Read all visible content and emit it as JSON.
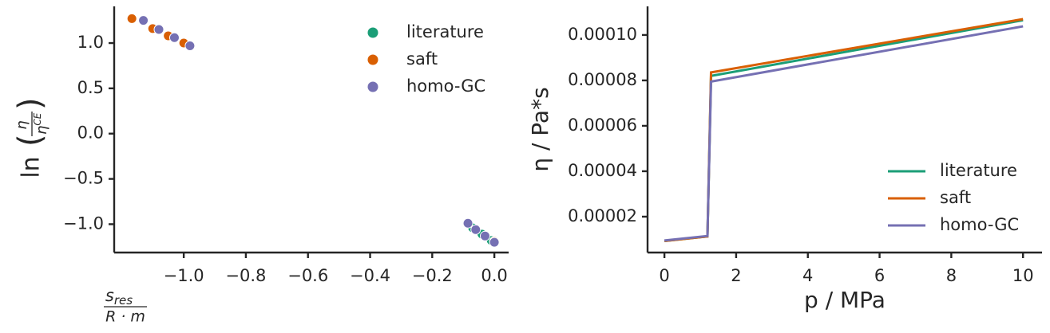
{
  "chart_data": [
    {
      "type": "scatter",
      "xlabel": {
        "num": "s",
        "num_sub": "res",
        "den": "R · m"
      },
      "ylabel": {
        "prefix": "ln",
        "num": "η",
        "den": "η",
        "den_sup": "CE"
      },
      "xlim": [
        -1.224,
        0.046
      ],
      "ylim": [
        -1.313,
        1.405
      ],
      "xticks": [
        {
          "value": -1.0,
          "label": "−1.0"
        },
        {
          "value": -0.8,
          "label": "−0.8"
        },
        {
          "value": -0.6,
          "label": "−0.6"
        },
        {
          "value": -0.4,
          "label": "−0.4"
        },
        {
          "value": -0.2,
          "label": "−0.2"
        },
        {
          "value": 0,
          "label": "0.0"
        }
      ],
      "yticks": [
        {
          "value": -1.0,
          "label": "−1.0"
        },
        {
          "value": -0.5,
          "label": "−0.5"
        },
        {
          "value": 0,
          "label": "0.0"
        },
        0.5,
        {
          "value": 1.0,
          "label": "1.0"
        }
      ],
      "legend": "upper right",
      "series": [
        {
          "name": "literature",
          "color": "#1b9e77",
          "x": [
            -0.07,
            -0.04,
            -0.01
          ],
          "values": [
            -1.04,
            -1.11,
            -1.18
          ]
        },
        {
          "name": "saft",
          "color": "#d95f02",
          "x": [
            -1.167,
            -1.1,
            -1.05,
            -1.0,
            0.0
          ],
          "values": [
            1.27,
            1.16,
            1.08,
            1.0,
            -1.19
          ]
        },
        {
          "name": "homo-GC",
          "color": "#7570b3",
          "x": [
            -1.13,
            -1.08,
            -1.03,
            -0.98,
            -0.085,
            -0.06,
            -0.03,
            0.0
          ],
          "values": [
            1.25,
            1.15,
            1.06,
            0.97,
            -0.99,
            -1.06,
            -1.13,
            -1.2
          ]
        }
      ]
    },
    {
      "type": "line",
      "xlabel": "p / MPa",
      "ylabel": "η / Pa*s",
      "xlim": [
        -0.47,
        10.53
      ],
      "ylim": [
        4.2e-06,
        0.0001126
      ],
      "xticks": [
        0,
        2,
        4,
        6,
        8,
        10
      ],
      "yticks": [
        2e-05,
        4e-05,
        6e-05,
        8e-05,
        {
          "value": 0.0001,
          "label": "0.00010"
        }
      ],
      "legend": "lower right",
      "series": [
        {
          "name": "literature",
          "color": "#1b9e77",
          "x": [
            0,
            1.2,
            1.3,
            10
          ],
          "values": [
            9.3e-06,
            1.13e-05,
            8.2e-05,
            0.0001065
          ]
        },
        {
          "name": "saft",
          "color": "#d95f02",
          "x": [
            0,
            1.2,
            1.3,
            10
          ],
          "values": [
            9.3e-06,
            1.13e-05,
            8.35e-05,
            0.000107
          ]
        },
        {
          "name": "homo-GC",
          "color": "#7570b3",
          "x": [
            0,
            1.2,
            1.3,
            10
          ],
          "values": [
            9.5e-06,
            1.15e-05,
            7.95e-05,
            0.0001038
          ]
        }
      ]
    }
  ]
}
